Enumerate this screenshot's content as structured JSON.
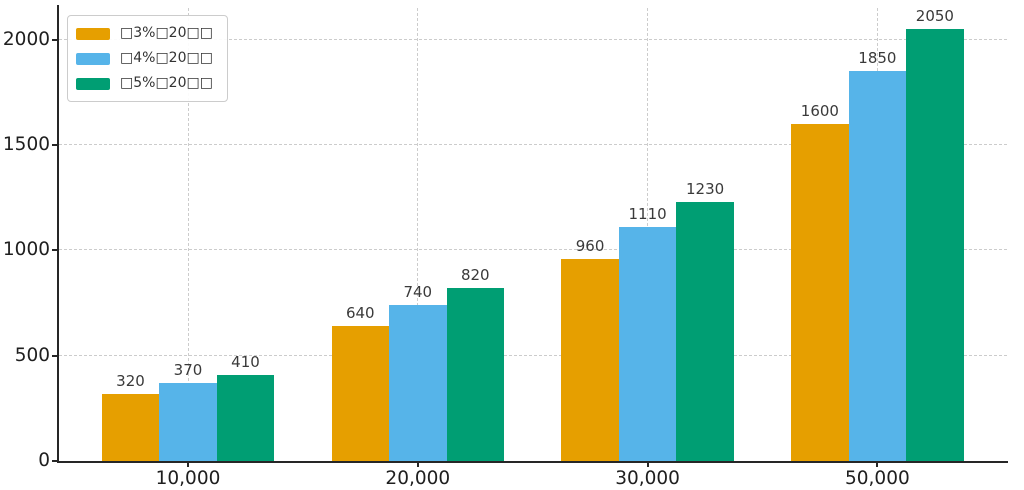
{
  "figure": {
    "background": "#ffffff",
    "spine_color": "#262626",
    "grid_color": "#cccccc",
    "tick_label_color": "#1f1f1f",
    "bar_label_color": "#3a3a3a"
  },
  "chart_data": {
    "type": "bar",
    "title": "",
    "xlabel": "",
    "ylabel": "",
    "categories": [
      "10,000",
      "20,000",
      "30,000",
      "50,000"
    ],
    "series": [
      {
        "name": "□3%□20□□",
        "color": "#E69F00",
        "values": [
          320,
          640,
          960,
          1600
        ]
      },
      {
        "name": "□4%□20□□",
        "color": "#56B4E9",
        "values": [
          370,
          740,
          1110,
          1850
        ]
      },
      {
        "name": "□5%□20□□",
        "color": "#009E73",
        "values": [
          410,
          820,
          1230,
          2050
        ]
      }
    ],
    "yticks": [
      0,
      500,
      1000,
      1500,
      2000
    ],
    "ylim": [
      0,
      2150
    ],
    "grid": true,
    "grid_style": "dashed",
    "legend_position": "upper-left",
    "bar_value_labels": true
  }
}
